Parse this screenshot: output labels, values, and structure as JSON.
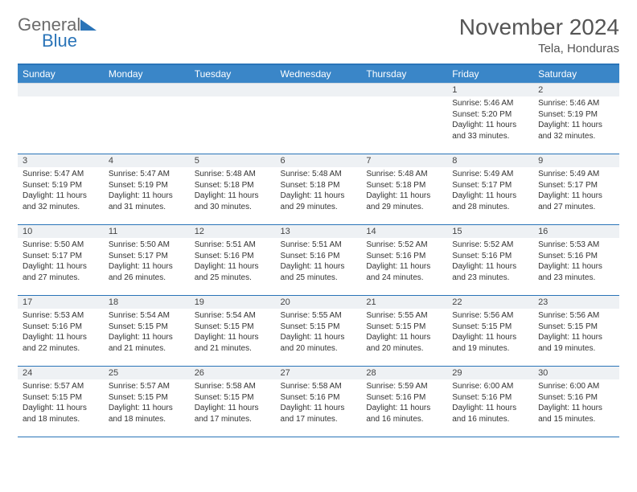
{
  "header": {
    "logo_word1": "General",
    "logo_word2": "Blue",
    "month_title": "November 2024",
    "location": "Tela, Honduras"
  },
  "colors": {
    "header_bg": "#3a86c8",
    "border": "#2a74b8",
    "daynum_bg": "#eef1f4",
    "text": "#333333"
  },
  "typography": {
    "month_title_fontsize": 28,
    "location_fontsize": 15,
    "day_header_fontsize": 12,
    "daynum_fontsize": 11,
    "body_fontsize": 10
  },
  "calendar": {
    "type": "table",
    "day_headers": [
      "Sunday",
      "Monday",
      "Tuesday",
      "Wednesday",
      "Thursday",
      "Friday",
      "Saturday"
    ],
    "weeks": [
      [
        {
          "num": "",
          "lines": []
        },
        {
          "num": "",
          "lines": []
        },
        {
          "num": "",
          "lines": []
        },
        {
          "num": "",
          "lines": []
        },
        {
          "num": "",
          "lines": []
        },
        {
          "num": "1",
          "lines": [
            "Sunrise: 5:46 AM",
            "Sunset: 5:20 PM",
            "Daylight: 11 hours and 33 minutes."
          ]
        },
        {
          "num": "2",
          "lines": [
            "Sunrise: 5:46 AM",
            "Sunset: 5:19 PM",
            "Daylight: 11 hours and 32 minutes."
          ]
        }
      ],
      [
        {
          "num": "3",
          "lines": [
            "Sunrise: 5:47 AM",
            "Sunset: 5:19 PM",
            "Daylight: 11 hours and 32 minutes."
          ]
        },
        {
          "num": "4",
          "lines": [
            "Sunrise: 5:47 AM",
            "Sunset: 5:19 PM",
            "Daylight: 11 hours and 31 minutes."
          ]
        },
        {
          "num": "5",
          "lines": [
            "Sunrise: 5:48 AM",
            "Sunset: 5:18 PM",
            "Daylight: 11 hours and 30 minutes."
          ]
        },
        {
          "num": "6",
          "lines": [
            "Sunrise: 5:48 AM",
            "Sunset: 5:18 PM",
            "Daylight: 11 hours and 29 minutes."
          ]
        },
        {
          "num": "7",
          "lines": [
            "Sunrise: 5:48 AM",
            "Sunset: 5:18 PM",
            "Daylight: 11 hours and 29 minutes."
          ]
        },
        {
          "num": "8",
          "lines": [
            "Sunrise: 5:49 AM",
            "Sunset: 5:17 PM",
            "Daylight: 11 hours and 28 minutes."
          ]
        },
        {
          "num": "9",
          "lines": [
            "Sunrise: 5:49 AM",
            "Sunset: 5:17 PM",
            "Daylight: 11 hours and 27 minutes."
          ]
        }
      ],
      [
        {
          "num": "10",
          "lines": [
            "Sunrise: 5:50 AM",
            "Sunset: 5:17 PM",
            "Daylight: 11 hours and 27 minutes."
          ]
        },
        {
          "num": "11",
          "lines": [
            "Sunrise: 5:50 AM",
            "Sunset: 5:17 PM",
            "Daylight: 11 hours and 26 minutes."
          ]
        },
        {
          "num": "12",
          "lines": [
            "Sunrise: 5:51 AM",
            "Sunset: 5:16 PM",
            "Daylight: 11 hours and 25 minutes."
          ]
        },
        {
          "num": "13",
          "lines": [
            "Sunrise: 5:51 AM",
            "Sunset: 5:16 PM",
            "Daylight: 11 hours and 25 minutes."
          ]
        },
        {
          "num": "14",
          "lines": [
            "Sunrise: 5:52 AM",
            "Sunset: 5:16 PM",
            "Daylight: 11 hours and 24 minutes."
          ]
        },
        {
          "num": "15",
          "lines": [
            "Sunrise: 5:52 AM",
            "Sunset: 5:16 PM",
            "Daylight: 11 hours and 23 minutes."
          ]
        },
        {
          "num": "16",
          "lines": [
            "Sunrise: 5:53 AM",
            "Sunset: 5:16 PM",
            "Daylight: 11 hours and 23 minutes."
          ]
        }
      ],
      [
        {
          "num": "17",
          "lines": [
            "Sunrise: 5:53 AM",
            "Sunset: 5:16 PM",
            "Daylight: 11 hours and 22 minutes."
          ]
        },
        {
          "num": "18",
          "lines": [
            "Sunrise: 5:54 AM",
            "Sunset: 5:15 PM",
            "Daylight: 11 hours and 21 minutes."
          ]
        },
        {
          "num": "19",
          "lines": [
            "Sunrise: 5:54 AM",
            "Sunset: 5:15 PM",
            "Daylight: 11 hours and 21 minutes."
          ]
        },
        {
          "num": "20",
          "lines": [
            "Sunrise: 5:55 AM",
            "Sunset: 5:15 PM",
            "Daylight: 11 hours and 20 minutes."
          ]
        },
        {
          "num": "21",
          "lines": [
            "Sunrise: 5:55 AM",
            "Sunset: 5:15 PM",
            "Daylight: 11 hours and 20 minutes."
          ]
        },
        {
          "num": "22",
          "lines": [
            "Sunrise: 5:56 AM",
            "Sunset: 5:15 PM",
            "Daylight: 11 hours and 19 minutes."
          ]
        },
        {
          "num": "23",
          "lines": [
            "Sunrise: 5:56 AM",
            "Sunset: 5:15 PM",
            "Daylight: 11 hours and 19 minutes."
          ]
        }
      ],
      [
        {
          "num": "24",
          "lines": [
            "Sunrise: 5:57 AM",
            "Sunset: 5:15 PM",
            "Daylight: 11 hours and 18 minutes."
          ]
        },
        {
          "num": "25",
          "lines": [
            "Sunrise: 5:57 AM",
            "Sunset: 5:15 PM",
            "Daylight: 11 hours and 18 minutes."
          ]
        },
        {
          "num": "26",
          "lines": [
            "Sunrise: 5:58 AM",
            "Sunset: 5:15 PM",
            "Daylight: 11 hours and 17 minutes."
          ]
        },
        {
          "num": "27",
          "lines": [
            "Sunrise: 5:58 AM",
            "Sunset: 5:16 PM",
            "Daylight: 11 hours and 17 minutes."
          ]
        },
        {
          "num": "28",
          "lines": [
            "Sunrise: 5:59 AM",
            "Sunset: 5:16 PM",
            "Daylight: 11 hours and 16 minutes."
          ]
        },
        {
          "num": "29",
          "lines": [
            "Sunrise: 6:00 AM",
            "Sunset: 5:16 PM",
            "Daylight: 11 hours and 16 minutes."
          ]
        },
        {
          "num": "30",
          "lines": [
            "Sunrise: 6:00 AM",
            "Sunset: 5:16 PM",
            "Daylight: 11 hours and 15 minutes."
          ]
        }
      ]
    ]
  }
}
